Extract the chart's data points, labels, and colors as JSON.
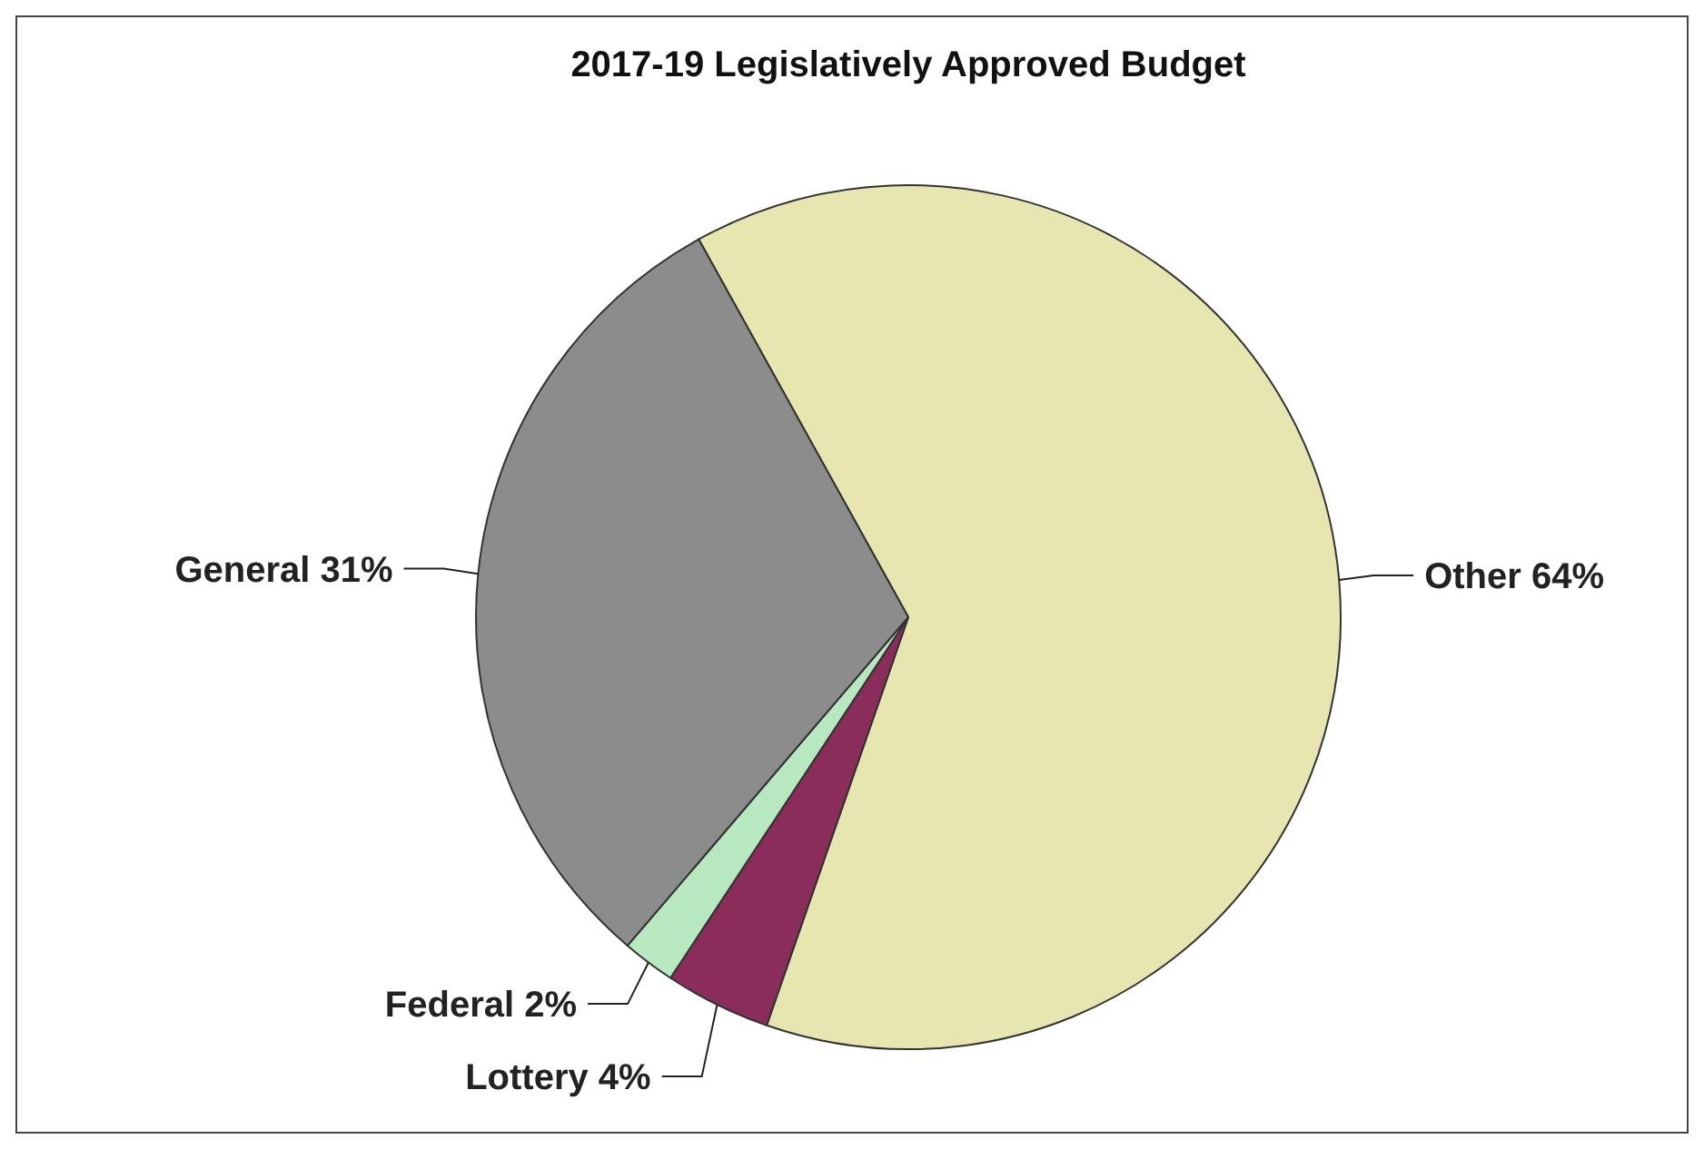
{
  "chart_data": {
    "type": "pie",
    "title": "2017-19  Legislatively Approved Budget",
    "categories": [
      "Other",
      "Lottery",
      "Federal",
      "General"
    ],
    "values": [
      64,
      4,
      2,
      31
    ],
    "colors": [
      "#e8e6b0",
      "#8b2d5a",
      "#b8e8c0",
      "#8c8c8c"
    ],
    "value_labels": [
      "64%",
      "4%",
      "2%",
      "31%"
    ]
  }
}
